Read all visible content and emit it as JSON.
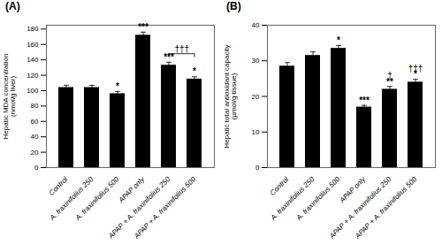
{
  "chart_data": [
    {
      "type": "bar",
      "title": "(A)",
      "y_label": "Hepatic MDA concentration\n(nmol/g liver)",
      "categories": [
        "Control",
        "A. fraxinifolius 250",
        "A. fraxinifolius 500",
        "APAP only",
        "APAP + A. fraxinifolius 250",
        "APAP + A. fraxinifolius 500"
      ],
      "values": [
        104,
        104,
        96,
        172,
        133,
        115
      ],
      "errors": [
        3,
        3,
        3,
        4,
        4,
        3
      ],
      "color": "#000000",
      "ylim": [
        0,
        185
      ],
      "yticks": [
        0,
        20,
        40,
        60,
        80,
        100,
        120,
        140,
        160,
        180
      ],
      "annotations": [
        {
          "text": "*",
          "x": "A. fraxinifolius 500",
          "y": 101
        },
        {
          "text": "***",
          "x": "APAP only",
          "y": 178
        },
        {
          "text": "***",
          "x": "APAP + A. fraxinifolius 250",
          "y": 139
        },
        {
          "text": "*",
          "x": "APAP + A. fraxinifolius 500",
          "y": 120
        },
        {
          "text": "†††",
          "x": [
            "APAP + A. fraxinifolius 250",
            "APAP + A. fraxinifolius 500"
          ],
          "y": 148
        }
      ]
    },
    {
      "type": "bar",
      "title": "(B)",
      "y_label": "Hepatic total antioxidant capacity\n(µmol/g tissue)",
      "categories": [
        "Control",
        "A. fraxinifolius 250",
        "A. fraxinifolius 500",
        "APAP only",
        "APAP + A. fraxinifolius 250",
        "APAP + A. fraxinifolius 500"
      ],
      "values": [
        28.5,
        31.5,
        33.5,
        17.0,
        22.0,
        24.0
      ],
      "errors": [
        1.0,
        1.0,
        0.8,
        0.5,
        0.8,
        0.8
      ],
      "color": "#000000",
      "ylim": [
        0,
        40
      ],
      "yticks": [
        0,
        10,
        20,
        30,
        40
      ],
      "annotations": [
        {
          "text": "*",
          "x": "A. fraxinifolius 500",
          "y": 34.6
        },
        {
          "text": "***",
          "x": "APAP only",
          "y": 17.8
        },
        {
          "text": "**",
          "x": "APAP + A. fraxinifolius 250",
          "y": 23.1
        },
        {
          "text": "†",
          "x": "APAP + A. fraxinifolius 250",
          "y": 24.6
        },
        {
          "text": "*",
          "x": "APAP + A. fraxinifolius 500",
          "y": 25.1
        },
        {
          "text": "†††",
          "x": "APAP + A. fraxinifolius 500",
          "y": 26.6
        }
      ]
    }
  ]
}
